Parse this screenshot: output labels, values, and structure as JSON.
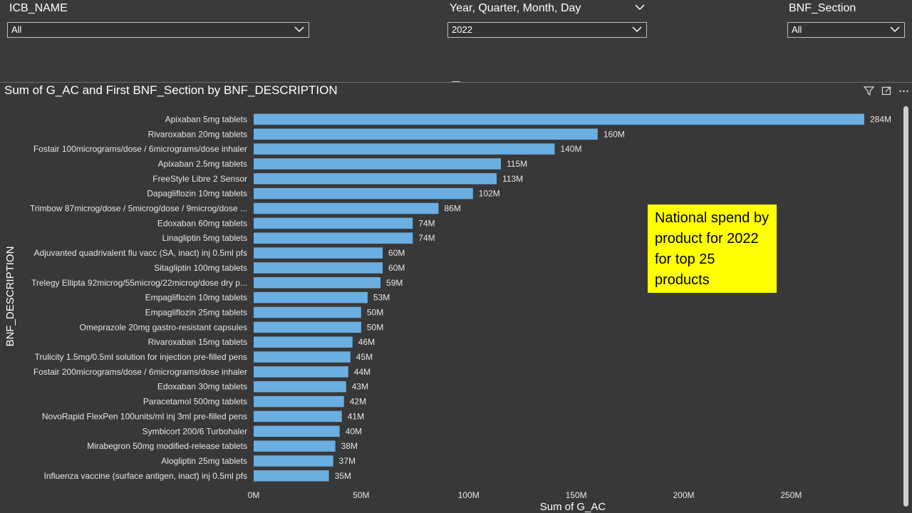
{
  "filters": {
    "icb": {
      "title": "ICB_NAME",
      "value": "All"
    },
    "date": {
      "title": "Year, Quarter, Month, Day",
      "value": "2022"
    },
    "bnf": {
      "title": "BNF_Section",
      "value": "All"
    }
  },
  "visual": {
    "title": "Sum of G_AC and First BNF_Section by BNF_DESCRIPTION",
    "icons": [
      "filter-icon",
      "focus-mode-icon",
      "more-options-icon"
    ]
  },
  "annotation": "National spend by product for 2022 for top 25 products",
  "colors": {
    "bar": "#6aaee2",
    "background": "#3a3a3a",
    "annotation_bg": "#ffff00"
  },
  "chart_data": {
    "type": "bar",
    "orientation": "horizontal",
    "title": "Sum of G_AC and First BNF_Section by BNF_DESCRIPTION",
    "xlabel": "Sum of G_AC",
    "ylabel": "BNF_DESCRIPTION",
    "xlim": [
      0,
      284
    ],
    "x_ticks": [
      "0M",
      "50M",
      "100M",
      "150M",
      "200M",
      "250M"
    ],
    "x_tick_values": [
      0,
      50,
      100,
      150,
      200,
      250
    ],
    "grid": false,
    "categories": [
      "Apixaban 5mg tablets",
      "Rivaroxaban 20mg tablets",
      "Fostair 100micrograms/dose / 6micrograms/dose inhaler",
      "Apixaban 2.5mg tablets",
      "FreeStyle Libre 2 Sensor",
      "Dapagliflozin 10mg tablets",
      "Trimbow 87microg/dose / 5microg/dose / 9microg/dose ...",
      "Edoxaban 60mg tablets",
      "Linagliptin 5mg tablets",
      "Adjuvanted quadrivalent flu vacc (SA, inact) inj 0.5ml pfs",
      "Sitagliptin 100mg tablets",
      "Trelegy Ellipta 92microg/55microg/22microg/dose dry p...",
      "Empagliflozin 10mg tablets",
      "Empagliflozin 25mg tablets",
      "Omeprazole 20mg gastro-resistant capsules",
      "Rivaroxaban 15mg tablets",
      "Trulicity 1.5mg/0.5ml solution for injection pre-filled pens",
      "Fostair 200micrograms/dose / 6micrograms/dose inhaler",
      "Edoxaban 30mg tablets",
      "Paracetamol 500mg tablets",
      "NovoRapid FlexPen 100units/ml inj 3ml pre-filled pens",
      "Symbicort 200/6 Turbohaler",
      "Mirabegron 50mg modified-release tablets",
      "Alogliptin 25mg tablets",
      "Influenza vaccine (surface antigen, inact) inj 0.5ml pfs"
    ],
    "values": [
      284,
      160,
      140,
      115,
      113,
      102,
      86,
      74,
      74,
      60,
      60,
      59,
      53,
      50,
      50,
      46,
      45,
      44,
      43,
      42,
      41,
      40,
      38,
      37,
      35
    ],
    "value_labels": [
      "284M",
      "160M",
      "140M",
      "115M",
      "113M",
      "102M",
      "86M",
      "74M",
      "74M",
      "60M",
      "60M",
      "59M",
      "53M",
      "50M",
      "50M",
      "46M",
      "45M",
      "44M",
      "43M",
      "42M",
      "41M",
      "40M",
      "38M",
      "37M",
      "35M"
    ],
    "unit": "M"
  }
}
